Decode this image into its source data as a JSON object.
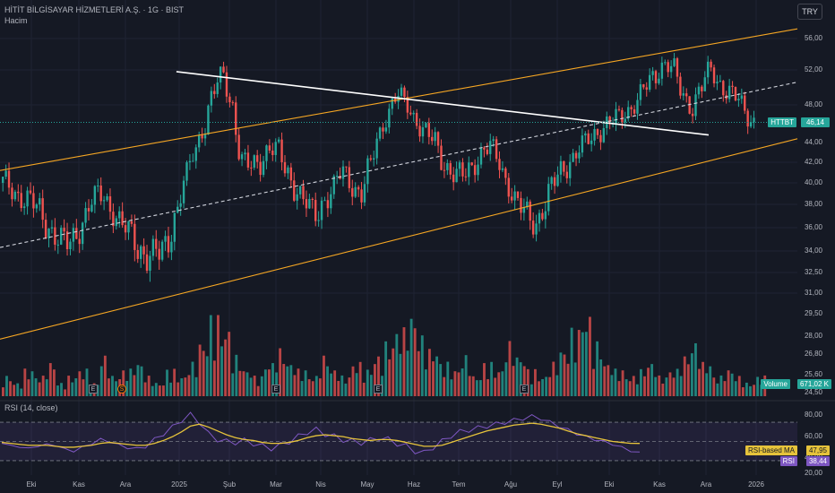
{
  "header": {
    "title": "HİTİT BİLGİSAYAR HİZMETLERİ A.Ş. · 1G · BIST",
    "volume_label": "Hacim",
    "currency": "TRY"
  },
  "rsi_panel": {
    "title": "RSI (14, close)",
    "ma_label": "RSI-based MA",
    "ma_value": "47,95",
    "rsi_label": "RSI",
    "rsi_value": "38,44",
    "levels": [
      "80,00",
      "60,00",
      "40,00",
      "20,00"
    ]
  },
  "badges": {
    "ticker": "HTTBT",
    "price": "46,14",
    "volume_label": "Volume",
    "volume_value": "671,02 K"
  },
  "events": [
    "E",
    "S",
    "E",
    "E",
    "E"
  ],
  "colors": {
    "background": "#151924",
    "up": "#26a69a",
    "down": "#ef5350",
    "channel": "#f5a623",
    "trendline": "#ffffff",
    "rsi": "#7e57c2",
    "rsi_ma": "#e6c33b",
    "price_badge": "#26a69a"
  },
  "chart_data": {
    "type": "candlestick",
    "y_ticks": [
      "56,00",
      "52,00",
      "48,00",
      "44,00",
      "42,00",
      "40,00",
      "38,00",
      "36,00",
      "34,00",
      "32,50",
      "31,00",
      "29,50",
      "28,00",
      "26,80",
      "25,60",
      "24,50"
    ],
    "x_ticks": [
      "Eki",
      "Kas",
      "Ara",
      "2025",
      "Şub",
      "Mar",
      "Nis",
      "May",
      "Haz",
      "Tem",
      "Ağu",
      "Eyl",
      "Eki",
      "Kas",
      "Ara",
      "2026"
    ],
    "last_price": 46.14,
    "price_series_close": [
      40.0,
      39.5,
      38.8,
      38.2,
      37.5,
      36.2,
      35.0,
      34.5,
      35.5,
      37.0,
      38.5,
      39.0,
      37.5,
      36.0,
      35.5,
      34.2,
      33.5,
      33.8,
      35.0,
      37.5,
      40.5,
      43.5,
      46.0,
      49.5,
      51.5,
      48.0,
      42.0,
      41.5,
      42.2,
      43.5,
      43.0,
      41.0,
      39.5,
      38.0,
      37.0,
      38.5,
      39.5,
      41.0,
      40.0,
      39.0,
      41.5,
      45.0,
      47.5,
      49.0,
      48.0,
      46.5,
      45.0,
      44.0,
      42.0,
      41.0,
      40.5,
      41.5,
      43.0,
      43.5,
      42.0,
      40.0,
      38.0,
      37.0,
      36.5,
      38.0,
      40.0,
      41.5,
      42.5,
      43.5,
      44.5,
      45.5,
      46.0,
      46.5,
      47.5,
      48.5,
      50.0,
      51.5,
      53.0,
      52.0,
      49.0,
      48.0,
      50.0,
      52.0,
      50.5,
      49.5,
      48.5,
      47.0,
      46.14
    ],
    "channel": {
      "upper": [
        [
          0,
          41.2
        ],
        [
          1,
          57.2
        ]
      ],
      "mid": [
        [
          0,
          34.3
        ],
        [
          1,
          50.6
        ]
      ],
      "lower": [
        [
          0,
          27.8
        ],
        [
          1,
          44.4
        ]
      ]
    },
    "trendline": [
      [
        0.21,
        51.8
      ],
      [
        0.855,
        44.8
      ]
    ],
    "rsi_series": [
      48,
      46,
      44,
      43,
      45,
      47,
      46,
      42,
      40,
      44,
      48,
      52,
      50,
      46,
      44,
      42,
      45,
      52,
      58,
      65,
      72,
      78,
      70,
      58,
      52,
      50,
      49,
      51,
      48,
      45,
      43,
      46,
      50,
      55,
      60,
      62,
      58,
      55,
      52,
      50,
      49,
      51,
      54,
      52,
      48,
      45,
      40,
      38,
      44,
      50,
      56,
      60,
      62,
      64,
      66,
      68,
      70,
      72,
      74,
      76,
      74,
      70,
      66,
      62,
      58,
      55,
      52,
      50,
      47,
      44,
      40,
      38.44
    ],
    "rsi_ma_series": [
      49,
      48,
      47,
      46,
      46,
      46,
      45,
      44,
      44,
      45,
      46,
      48,
      49,
      48,
      47,
      46,
      46,
      48,
      51,
      55,
      60,
      66,
      68,
      65,
      61,
      57,
      54,
      52,
      51,
      49,
      48,
      48,
      49,
      51,
      54,
      56,
      57,
      56,
      55,
      53,
      52,
      51,
      52,
      52,
      51,
      49,
      47,
      45,
      45,
      46,
      49,
      52,
      55,
      58,
      61,
      63,
      65,
      67,
      68,
      69,
      68,
      66,
      64,
      61,
      58,
      56,
      54,
      52,
      50,
      49,
      48,
      47.95
    ],
    "volume_series": [
      3,
      2,
      4,
      3,
      5,
      2,
      3,
      4,
      2,
      6,
      3,
      4,
      5,
      3,
      2,
      4,
      3,
      5,
      8,
      12,
      10,
      6,
      4,
      3,
      5,
      7,
      5,
      4,
      3,
      6,
      4,
      3,
      5,
      4,
      6,
      8,
      10,
      12,
      9,
      7,
      5,
      4,
      6,
      3,
      5,
      4,
      8,
      6,
      4,
      3,
      5,
      7,
      10,
      12,
      8,
      5,
      4,
      3,
      4,
      5,
      3,
      4,
      6,
      8,
      5,
      3,
      4,
      3,
      2,
      3
    ]
  }
}
